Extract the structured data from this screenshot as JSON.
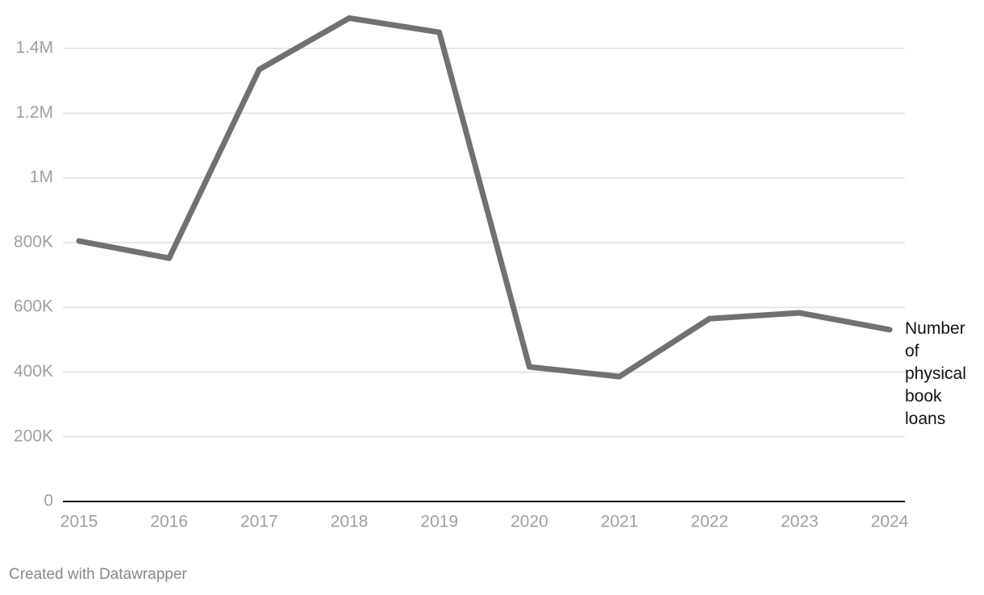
{
  "chart_data": {
    "type": "line",
    "x": [
      2015,
      2016,
      2017,
      2018,
      2019,
      2020,
      2021,
      2022,
      2023,
      2024
    ],
    "xlim": [
      2015,
      2024
    ],
    "xticks": [
      2015,
      2016,
      2017,
      2018,
      2019,
      2020,
      2021,
      2022,
      2023,
      2024
    ],
    "series": [
      {
        "name": "Number of physical book loans",
        "color": "#717171",
        "values": [
          805000,
          752000,
          1335000,
          1494000,
          1450000,
          416000,
          386000,
          565000,
          583000,
          531000
        ]
      }
    ],
    "ylim": [
      0,
      1500000
    ],
    "yticks": [
      0,
      {
        "value": 200000,
        "label": "200K"
      },
      {
        "value": 400000,
        "label": "400K"
      },
      {
        "value": 600000,
        "label": "600K"
      },
      {
        "value": 800000,
        "label": "800K"
      },
      {
        "value": 1000000,
        "label": "1M"
      },
      {
        "value": 1200000,
        "label": "1.2M"
      },
      {
        "value": 1400000,
        "label": "1.4M"
      }
    ],
    "grid": true,
    "source": "Created with Datawrapper"
  }
}
